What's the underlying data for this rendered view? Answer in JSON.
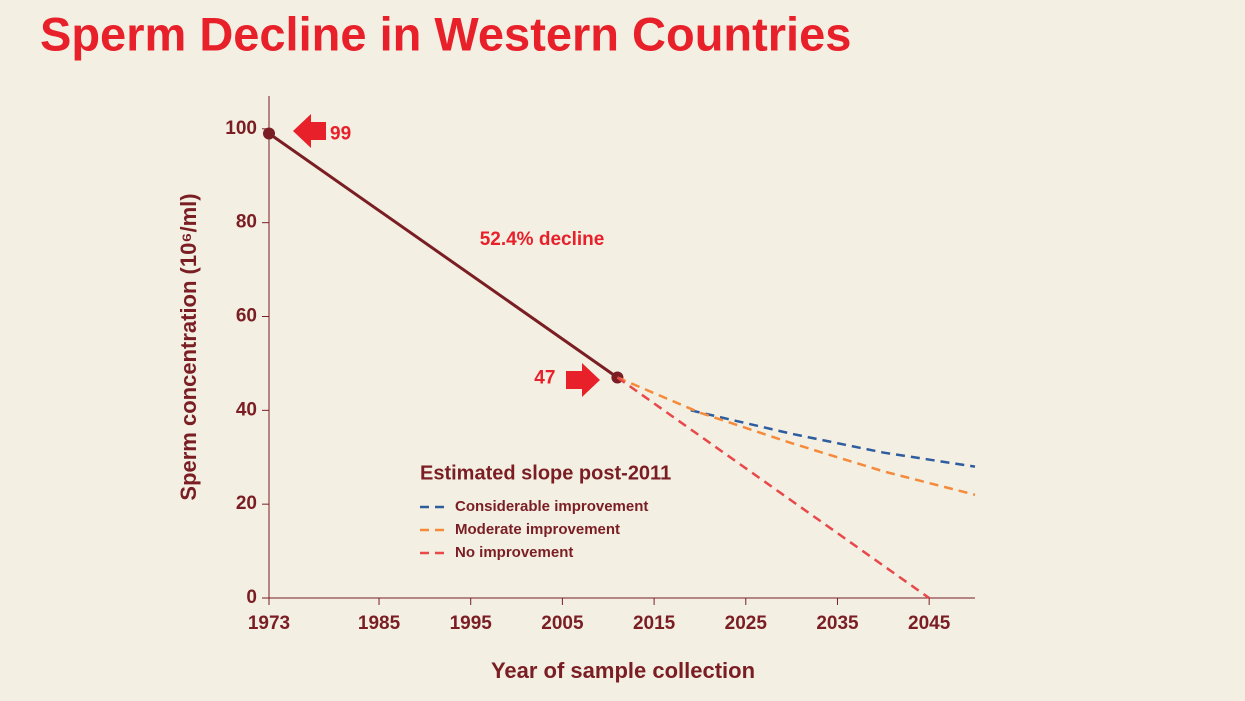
{
  "chart_data": {
    "type": "line",
    "title": "Sperm Decline in Western Countries",
    "x_label": "Year of sample collection",
    "y_label": "Sperm concentration (10⁶/ml)",
    "xlim": [
      1973,
      2050
    ],
    "ylim": [
      0,
      107
    ],
    "xticks": [
      1973,
      1985,
      1995,
      2005,
      2015,
      2025,
      2035,
      2045
    ],
    "yticks": [
      0,
      20,
      40,
      60,
      80,
      100
    ],
    "legend_title": "Estimated slope post-2011",
    "legend_position": "lower left",
    "annotation": "52.4% decline",
    "series": [
      {
        "color": "#7a1e24",
        "dash": false,
        "markers": true,
        "x": [
          1973,
          2011
        ],
        "values": [
          99,
          47
        ]
      },
      {
        "name": "Considerable improvement",
        "color": "#2e5d9f",
        "dash": true,
        "x": [
          2019,
          2030,
          2040,
          2050
        ],
        "values": [
          40,
          35,
          31,
          28
        ]
      },
      {
        "name": "Moderate improvement",
        "color": "#f58a3b",
        "dash": true,
        "x": [
          2011,
          2020,
          2030,
          2040,
          2050
        ],
        "values": [
          47,
          39.5,
          33,
          27,
          22
        ]
      },
      {
        "name": "No improvement",
        "color": "#e8484a",
        "dash": true,
        "x": [
          2011,
          2045
        ],
        "values": [
          47,
          0
        ]
      }
    ]
  }
}
